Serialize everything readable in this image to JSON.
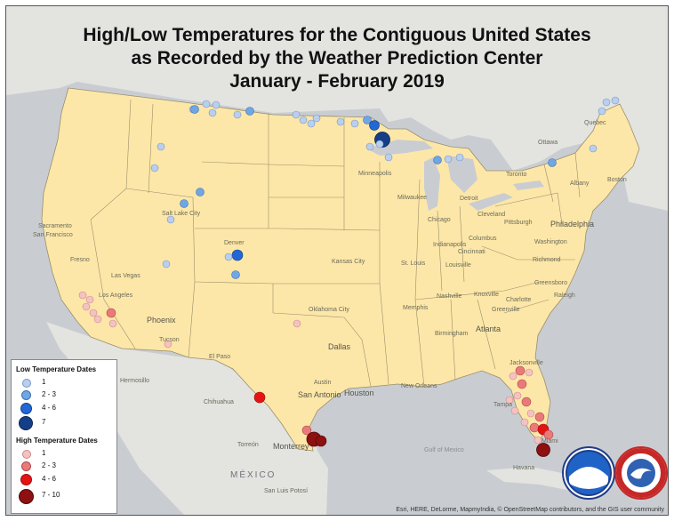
{
  "title": {
    "line1": "High/Low Temperatures for the Contiguous United States",
    "line2": "as Recorded by the Weather Prediction Center",
    "line3": "January - February 2019"
  },
  "legend": {
    "low_title": "Low Temperature Dates",
    "low_items": [
      {
        "label": "1",
        "color": "#b9cff0"
      },
      {
        "label": "2 - 3",
        "color": "#6fa6e6"
      },
      {
        "label": "4 - 6",
        "color": "#2168d6"
      },
      {
        "label": "7",
        "color": "#143f88"
      }
    ],
    "high_title": "High Temperature Dates",
    "high_items": [
      {
        "label": "1",
        "color": "#f5c2c2"
      },
      {
        "label": "2 - 3",
        "color": "#ea7a7a"
      },
      {
        "label": "4 - 6",
        "color": "#e51414"
      },
      {
        "label": "7 - 10",
        "color": "#8e1010"
      }
    ]
  },
  "colors": {
    "land_us": "#fde7a8",
    "land_other": "#e3e3e0",
    "water": "#c9cdd2",
    "state_border": "#9a8f6b"
  },
  "cities": {
    "ottawa": "Ottawa",
    "toronto": "Toronto",
    "minneapolis": "Minneapolis",
    "milwaukee": "Milwaukee",
    "chicago": "Chicago",
    "detroit": "Detroit",
    "cleveland": "Cleveland",
    "pittsburgh": "Pittsburgh",
    "philadelphia": "Philadelphia",
    "washington": "Washington",
    "richmond": "Richmond",
    "columbus": "Columbus",
    "indianapolis": "Indianapolis",
    "cincinnati": "Cincinnati",
    "louisville": "Louisville",
    "st_louis": "St. Louis",
    "kansas_city": "Kansas City",
    "nashville": "Nashville",
    "knoxville": "Knoxville",
    "greensboro": "Greensboro",
    "raleigh": "Raleigh",
    "charlotte": "Charlotte",
    "greenville": "Greenville",
    "atlanta": "Atlanta",
    "birmingham": "Birmingham",
    "memphis": "Memphis",
    "oklahoma_city": "Oklahoma City",
    "dallas": "Dallas",
    "austin": "Austin",
    "san_antonio": "San Antonio",
    "houston": "Houston",
    "new_orleans": "New Orleans",
    "jacksonville": "Jacksonville",
    "tampa": "Tampa",
    "miami": "Miami",
    "denver": "Denver",
    "salt_lake_city": "Salt Lake City",
    "phoenix": "Phoenix",
    "tucson": "Tucson",
    "el_paso": "El Paso",
    "fresno": "Fresno",
    "sacramento": "Sacramento",
    "san_francisco": "San Francisco",
    "los_angeles": "Los Angeles",
    "las_vegas": "Las Vegas",
    "chihuahua": "Chihuahua",
    "hermosillo": "Hermosillo",
    "monterrey": "Monterrey",
    "torreon": "Torreón",
    "san_luis_potosi": "San Luis Potosí",
    "havana": "Havana",
    "quebec": "Quebec",
    "boston": "Boston",
    "albany": "Albany"
  },
  "water_labels": {
    "gulf": "Gulf of Mexico"
  },
  "country_labels": {
    "mexico": "MÉXICO"
  },
  "attribution": "Esri, HERE, DeLorme, MapmyIndia, © OpenStreetMap contributors, and the GIS user community",
  "logos": {
    "noaa": "NOAA",
    "nws": "NATIONAL WEATHER SERVICE"
  }
}
